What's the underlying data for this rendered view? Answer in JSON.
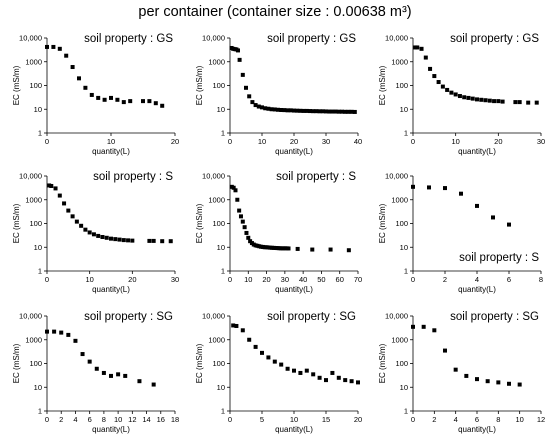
{
  "page": {
    "title": "per container (container size : 0.00638 m³)"
  },
  "chart_data": [
    {
      "type": "scatter",
      "title": "soil property : GS",
      "title_position": "top-right",
      "xlabel": "quantity(L)",
      "ylabel": "EC (mS/m)",
      "yscale": "log",
      "xlim": [
        0,
        20
      ],
      "xticks": [
        0,
        10,
        20
      ],
      "ylim": [
        1,
        10000
      ],
      "yticks": [
        1,
        10,
        100,
        1000,
        10000
      ],
      "yticklabels": [
        "1",
        "10",
        "100",
        "1000",
        "10,000"
      ],
      "marker_color": "#000000",
      "points": [
        [
          0,
          4200
        ],
        [
          1,
          4200
        ],
        [
          2,
          3500
        ],
        [
          3,
          1800
        ],
        [
          4,
          600
        ],
        [
          5,
          200
        ],
        [
          6,
          80
        ],
        [
          7,
          40
        ],
        [
          8,
          30
        ],
        [
          9,
          25
        ],
        [
          10,
          30
        ],
        [
          11,
          25
        ],
        [
          12,
          20
        ],
        [
          13,
          22
        ],
        [
          15,
          22
        ],
        [
          16,
          22
        ],
        [
          17,
          18
        ],
        [
          18,
          14
        ]
      ]
    },
    {
      "type": "scatter",
      "title": "soil property : GS",
      "title_position": "top-right",
      "xlabel": "quantity(L)",
      "ylabel": "EC (mS/m)",
      "yscale": "log",
      "xlim": [
        0,
        40
      ],
      "xticks": [
        0,
        10,
        20,
        30,
        40
      ],
      "ylim": [
        1,
        10000
      ],
      "yticks": [
        1,
        10,
        100,
        1000,
        10000
      ],
      "yticklabels": [
        "1",
        "10",
        "100",
        "1000",
        "10,000"
      ],
      "marker_color": "#000000",
      "points": [
        [
          0.5,
          3800
        ],
        [
          1,
          3500
        ],
        [
          1.5,
          3400
        ],
        [
          2,
          3300
        ],
        [
          2.5,
          3000
        ],
        [
          3,
          1200
        ],
        [
          4,
          280
        ],
        [
          5,
          80
        ],
        [
          6,
          35
        ],
        [
          7,
          20
        ],
        [
          8,
          15
        ],
        [
          9,
          13
        ],
        [
          10,
          12
        ],
        [
          11,
          11
        ],
        [
          12,
          10.5
        ],
        [
          13,
          10
        ],
        [
          14,
          9.8
        ],
        [
          15,
          9.5
        ],
        [
          16,
          9.3
        ],
        [
          17,
          9.2
        ],
        [
          18,
          9
        ],
        [
          19,
          9
        ],
        [
          20,
          8.8
        ],
        [
          21,
          8.7
        ],
        [
          22,
          8.6
        ],
        [
          23,
          8.5
        ],
        [
          24,
          8.5
        ],
        [
          25,
          8.4
        ],
        [
          26,
          8.3
        ],
        [
          27,
          8.3
        ],
        [
          28,
          8.2
        ],
        [
          29,
          8.2
        ],
        [
          30,
          8.1
        ],
        [
          31,
          8
        ],
        [
          32,
          8
        ],
        [
          33,
          8
        ],
        [
          34,
          7.9
        ],
        [
          35,
          7.9
        ],
        [
          36,
          7.8
        ],
        [
          37,
          7.8
        ],
        [
          38,
          7.8
        ],
        [
          39,
          7.7
        ]
      ]
    },
    {
      "type": "scatter",
      "title": "soil property : GS",
      "title_position": "top-right",
      "xlabel": "quantity(L)",
      "ylabel": "EC (mS/m)",
      "yscale": "log",
      "xlim": [
        0,
        30
      ],
      "xticks": [
        0,
        10,
        20,
        30
      ],
      "ylim": [
        1,
        10000
      ],
      "yticks": [
        1,
        10,
        100,
        1000,
        10000
      ],
      "yticklabels": [
        "1",
        "10",
        "100",
        "1000",
        "10,000"
      ],
      "marker_color": "#000000",
      "points": [
        [
          0.5,
          4000
        ],
        [
          1,
          4000
        ],
        [
          2,
          3500
        ],
        [
          3,
          1500
        ],
        [
          4,
          500
        ],
        [
          5,
          250
        ],
        [
          6,
          140
        ],
        [
          7,
          90
        ],
        [
          8,
          65
        ],
        [
          9,
          50
        ],
        [
          10,
          42
        ],
        [
          11,
          36
        ],
        [
          12,
          32
        ],
        [
          13,
          30
        ],
        [
          14,
          28
        ],
        [
          15,
          26
        ],
        [
          16,
          25
        ],
        [
          17,
          24
        ],
        [
          18,
          23
        ],
        [
          19,
          22
        ],
        [
          20,
          22
        ],
        [
          21,
          21
        ],
        [
          24,
          20
        ],
        [
          25,
          20
        ],
        [
          27,
          19
        ],
        [
          29,
          19
        ]
      ]
    },
    {
      "type": "scatter",
      "title": "soil property : S",
      "title_position": "top-right",
      "xlabel": "quantity(L)",
      "ylabel": "EC (mS/m)",
      "yscale": "log",
      "xlim": [
        0,
        30
      ],
      "xticks": [
        0,
        10,
        20,
        30
      ],
      "ylim": [
        1,
        10000
      ],
      "yticks": [
        1,
        10,
        100,
        1000,
        10000
      ],
      "yticklabels": [
        "1",
        "10",
        "100",
        "1000",
        "10,000"
      ],
      "marker_color": "#000000",
      "points": [
        [
          0.5,
          4000
        ],
        [
          1,
          3800
        ],
        [
          2,
          3000
        ],
        [
          3,
          1500
        ],
        [
          4,
          700
        ],
        [
          5,
          350
        ],
        [
          6,
          200
        ],
        [
          7,
          120
        ],
        [
          8,
          80
        ],
        [
          9,
          55
        ],
        [
          10,
          42
        ],
        [
          11,
          35
        ],
        [
          12,
          30
        ],
        [
          13,
          27
        ],
        [
          14,
          25
        ],
        [
          15,
          23
        ],
        [
          16,
          22
        ],
        [
          17,
          21
        ],
        [
          18,
          20
        ],
        [
          19,
          19.5
        ],
        [
          20,
          19
        ],
        [
          24,
          18.5
        ],
        [
          25,
          18.5
        ],
        [
          27,
          18
        ],
        [
          29,
          18
        ]
      ]
    },
    {
      "type": "scatter",
      "title": "soil property : S",
      "title_position": "top-right",
      "xlabel": "quantity(L)",
      "ylabel": "EC (mS/m)",
      "yscale": "log",
      "xlim": [
        0,
        70
      ],
      "xticks": [
        0,
        10,
        20,
        30,
        40,
        50,
        60,
        70
      ],
      "ylim": [
        1,
        10000
      ],
      "yticks": [
        1,
        10,
        100,
        1000,
        10000
      ],
      "yticklabels": [
        "1",
        "10",
        "100",
        "1000",
        "10,000"
      ],
      "marker_color": "#000000",
      "points": [
        [
          1,
          3500
        ],
        [
          2,
          3200
        ],
        [
          3,
          2500
        ],
        [
          4,
          1000
        ],
        [
          5,
          350
        ],
        [
          6,
          200
        ],
        [
          7,
          120
        ],
        [
          8,
          70
        ],
        [
          9,
          40
        ],
        [
          10,
          25
        ],
        [
          11,
          18
        ],
        [
          12,
          15
        ],
        [
          13,
          13
        ],
        [
          14,
          12
        ],
        [
          15,
          11.5
        ],
        [
          16,
          11
        ],
        [
          17,
          10.5
        ],
        [
          18,
          10.3
        ],
        [
          19,
          10
        ],
        [
          20,
          10
        ],
        [
          21,
          9.8
        ],
        [
          22,
          9.6
        ],
        [
          23,
          9.5
        ],
        [
          24,
          9.4
        ],
        [
          25,
          9.3
        ],
        [
          26,
          9.2
        ],
        [
          27,
          9.1
        ],
        [
          28,
          9
        ],
        [
          29,
          9
        ],
        [
          30,
          9
        ],
        [
          31,
          9
        ],
        [
          32,
          8.9
        ],
        [
          37,
          8.5
        ],
        [
          45,
          8
        ],
        [
          55,
          8
        ],
        [
          65,
          7.5
        ]
      ]
    },
    {
      "type": "scatter",
      "title": "soil property : S",
      "title_position": "bottom-right",
      "xlabel": "quantity(L)",
      "ylabel": "EC (mS/m)",
      "yscale": "log",
      "xlim": [
        0,
        8
      ],
      "xticks": [
        0,
        2,
        4,
        6,
        8
      ],
      "ylim": [
        1,
        10000
      ],
      "yticks": [
        1,
        10,
        100,
        1000,
        10000
      ],
      "yticklabels": [
        "1",
        "10",
        "100",
        "1000",
        "10,000"
      ],
      "marker_color": "#000000",
      "points": [
        [
          0,
          3500
        ],
        [
          1,
          3300
        ],
        [
          2,
          3100
        ],
        [
          3,
          1800
        ],
        [
          4,
          550
        ],
        [
          5,
          180
        ],
        [
          6,
          90
        ]
      ]
    },
    {
      "type": "scatter",
      "title": "soil property : SG",
      "title_position": "top-right",
      "xlabel": "quantity(L)",
      "ylabel": "EC (mS/m)",
      "yscale": "log",
      "xlim": [
        0,
        18
      ],
      "xticks": [
        0,
        2,
        4,
        6,
        8,
        10,
        12,
        14,
        16,
        18
      ],
      "ylim": [
        1,
        10000
      ],
      "yticks": [
        1,
        10,
        100,
        1000,
        10000
      ],
      "yticklabels": [
        "1",
        "10",
        "100",
        "1000",
        "10,000"
      ],
      "marker_color": "#000000",
      "points": [
        [
          0,
          2200
        ],
        [
          1,
          2200
        ],
        [
          2,
          2000
        ],
        [
          3,
          1600
        ],
        [
          4,
          900
        ],
        [
          5,
          250
        ],
        [
          6,
          120
        ],
        [
          7,
          60
        ],
        [
          8,
          40
        ],
        [
          9,
          30
        ],
        [
          10,
          35
        ],
        [
          11,
          30
        ],
        [
          13,
          18
        ],
        [
          15,
          13
        ]
      ]
    },
    {
      "type": "scatter",
      "title": "soil property : SG",
      "title_position": "top-right",
      "xlabel": "quantity(L)",
      "ylabel": "EC (mS/m)",
      "yscale": "log",
      "xlim": [
        0,
        20
      ],
      "xticks": [
        0,
        5,
        10,
        15,
        20
      ],
      "ylim": [
        1,
        10000
      ],
      "yticks": [
        1,
        10,
        100,
        1000,
        10000
      ],
      "yticklabels": [
        "1",
        "10",
        "100",
        "1000",
        "10,000"
      ],
      "marker_color": "#000000",
      "points": [
        [
          0.5,
          4000
        ],
        [
          1,
          3800
        ],
        [
          2,
          2500
        ],
        [
          3,
          1000
        ],
        [
          4,
          500
        ],
        [
          5,
          280
        ],
        [
          6,
          180
        ],
        [
          7,
          120
        ],
        [
          8,
          90
        ],
        [
          9,
          60
        ],
        [
          10,
          50
        ],
        [
          11,
          40
        ],
        [
          12,
          50
        ],
        [
          13,
          35
        ],
        [
          14,
          25
        ],
        [
          15,
          20
        ],
        [
          16,
          40
        ],
        [
          17,
          25
        ],
        [
          18,
          20
        ],
        [
          19,
          18
        ],
        [
          20,
          16
        ]
      ]
    },
    {
      "type": "scatter",
      "title": "soil property : SG",
      "title_position": "top-right",
      "xlabel": "quantity(L)",
      "ylabel": "EC (mS/m)",
      "yscale": "log",
      "xlim": [
        0,
        12
      ],
      "xticks": [
        0,
        2,
        4,
        6,
        8,
        10,
        12
      ],
      "ylim": [
        1,
        10000
      ],
      "yticks": [
        1,
        10,
        100,
        1000,
        10000
      ],
      "yticklabels": [
        "1",
        "10",
        "100",
        "1000",
        "10,000"
      ],
      "marker_color": "#000000",
      "points": [
        [
          0,
          3500
        ],
        [
          1,
          3500
        ],
        [
          2,
          2500
        ],
        [
          3,
          350
        ],
        [
          4,
          55
        ],
        [
          5,
          30
        ],
        [
          6,
          22
        ],
        [
          7,
          18
        ],
        [
          8,
          16
        ],
        [
          9,
          14
        ],
        [
          10,
          13
        ]
      ]
    }
  ]
}
